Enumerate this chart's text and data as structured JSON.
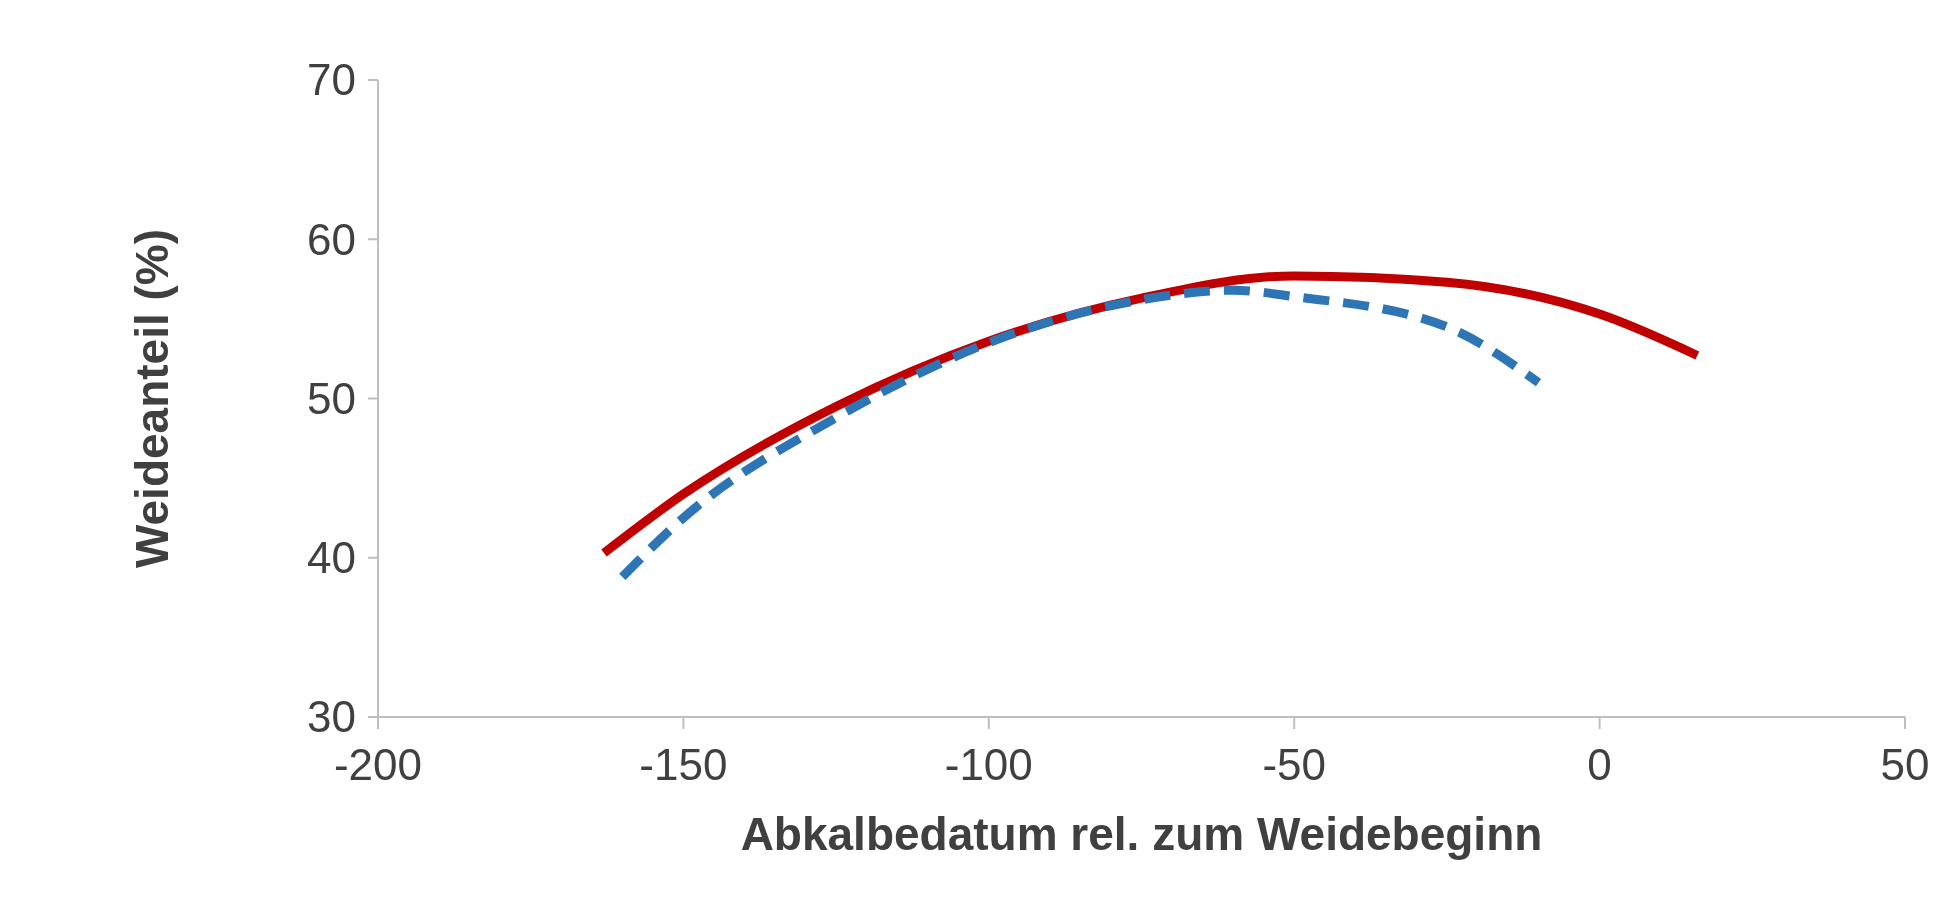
{
  "chart_data": {
    "type": "line",
    "xlabel": "Abkalbedatum rel. zum Weidebeginn",
    "ylabel": "Weideanteil (%)",
    "xlim": [
      -200,
      50
    ],
    "xticks": [
      -200,
      -150,
      -100,
      -50,
      0,
      50
    ],
    "ylim": [
      30,
      70
    ],
    "yticks": [
      30,
      40,
      50,
      60,
      70
    ],
    "grid": false,
    "marker": "none",
    "series": [
      {
        "color": "#c00000",
        "line_style": "solid",
        "x": [
          -163,
          -150,
          -125,
          -100,
          -75,
          -50,
          -25,
          0,
          16
        ],
        "values": [
          40.3,
          44,
          49.5,
          53.6,
          56.3,
          57.7,
          57.3,
          55.3,
          52.7
        ]
      },
      {
        "color": "#2e75b6",
        "line_style": "dashed",
        "x": [
          -160,
          -150,
          -125,
          -100,
          -75,
          -60,
          -50,
          -25,
          -10
        ],
        "values": [
          38.8,
          42.5,
          48.8,
          53.5,
          56.2,
          56.8,
          56.4,
          54.5,
          51
        ]
      }
    ]
  }
}
